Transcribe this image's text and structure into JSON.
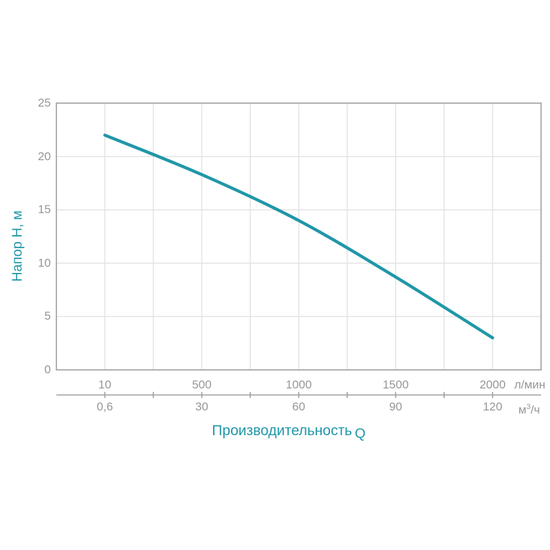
{
  "chart_data": {
    "type": "line",
    "title": "",
    "y_axis": {
      "label": "Напор H, м",
      "ticks": [
        "0",
        "5",
        "10",
        "15",
        "20",
        "25"
      ],
      "tick_values": [
        0,
        5,
        10,
        15,
        20,
        25
      ],
      "range": [
        0,
        25
      ]
    },
    "x_axis_primary": {
      "unit": "л/мин",
      "tick_labels": [
        "10",
        "500",
        "1000",
        "1500",
        "2000"
      ],
      "tick_values": [
        10,
        500,
        1000,
        1500,
        2000
      ]
    },
    "x_axis_secondary": {
      "unit_base": "м",
      "unit_sup": "3",
      "unit_rest": "/ч",
      "tick_labels": [
        "0,6",
        "30",
        "60",
        "90",
        "120"
      ]
    },
    "x_label": {
      "text": "Производительность",
      "symbol": "Q"
    },
    "series": [
      {
        "name": "pump-head-curve",
        "points": [
          {
            "q": 10,
            "h": 22.0
          },
          {
            "q": 500,
            "h": 18.3
          },
          {
            "q": 1000,
            "h": 14.0
          },
          {
            "q": 1500,
            "h": 8.7
          },
          {
            "q": 2000,
            "h": 3.0
          }
        ]
      }
    ],
    "grid": true,
    "legend": "none",
    "colors": {
      "curve": "#2097A8",
      "axis_title": "#2097A8",
      "tick_text": "#969696",
      "gridline": "#e3e3e3",
      "plot_border": "#b0b0b0",
      "secondary_axis": "#9c9c9c"
    }
  }
}
